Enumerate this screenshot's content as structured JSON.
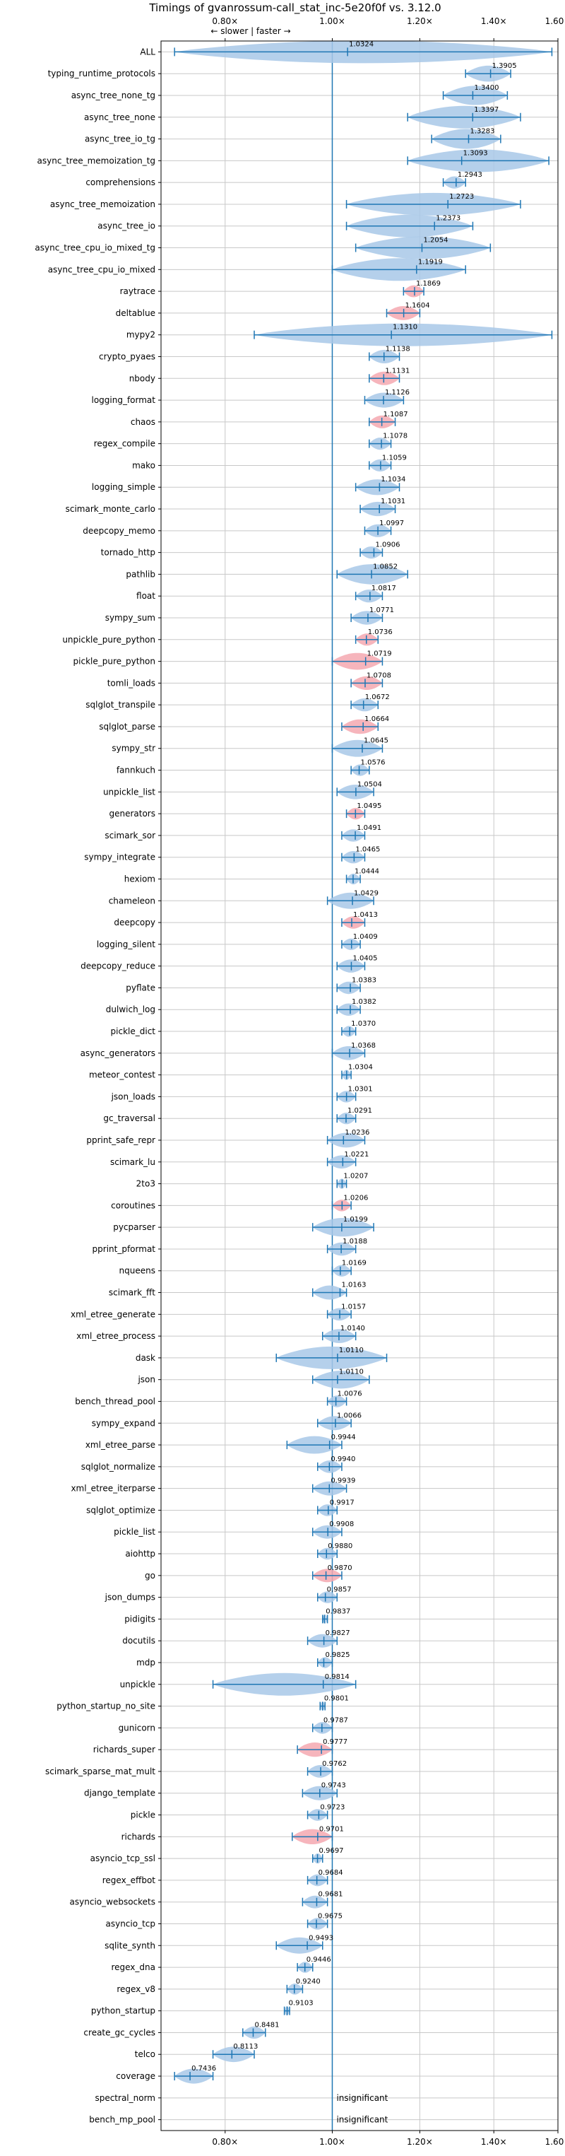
{
  "chart_data": {
    "type": "violin",
    "title": "Timings of gvanrossum-call_stat_inc-5e20f0f vs. 3.12.0",
    "direction_label": "← slower | faster →",
    "xlim": [
      0.7,
      1.6
    ],
    "xscale": "log",
    "xticks": [
      {
        "value": 0.8,
        "label": "0.80×"
      },
      {
        "value": 1.0,
        "label": "1.00×"
      },
      {
        "value": 1.2,
        "label": "1.20×"
      },
      {
        "value": 1.4,
        "label": "1.40×"
      },
      {
        "value": 1.6,
        "label": "1.60×"
      }
    ],
    "insignificant_label": "insignificant",
    "colors": {
      "normal": "#a8c8e8",
      "highlight": "#f4a8b0",
      "line": "#1f77b4",
      "grid": "#c8c8c8",
      "refline": "#1f77b4"
    },
    "benchmarks": [
      {
        "name": "ALL",
        "value": 1.0324,
        "label": "1.0324",
        "min": 0.72,
        "max": 1.58,
        "highlight": false
      },
      {
        "name": "typing_runtime_protocols",
        "value": 1.3905,
        "label": "1.3905",
        "min": 1.32,
        "max": 1.45,
        "highlight": false
      },
      {
        "name": "async_tree_none_tg",
        "value": 1.34,
        "label": "1.3400",
        "min": 1.26,
        "max": 1.44,
        "highlight": false
      },
      {
        "name": "async_tree_none",
        "value": 1.3397,
        "label": "1.3397",
        "min": 1.17,
        "max": 1.48,
        "highlight": false
      },
      {
        "name": "async_tree_io_tg",
        "value": 1.3283,
        "label": "1.3283",
        "min": 1.23,
        "max": 1.42,
        "highlight": false
      },
      {
        "name": "async_tree_memoization_tg",
        "value": 1.3093,
        "label": "1.3093",
        "min": 1.17,
        "max": 1.57,
        "highlight": false
      },
      {
        "name": "comprehensions",
        "value": 1.2943,
        "label": "1.2943",
        "min": 1.26,
        "max": 1.32,
        "highlight": false
      },
      {
        "name": "async_tree_memoization",
        "value": 1.2723,
        "label": "1.2723",
        "min": 1.03,
        "max": 1.48,
        "highlight": false
      },
      {
        "name": "async_tree_io",
        "value": 1.2373,
        "label": "1.2373",
        "min": 1.03,
        "max": 1.34,
        "highlight": false
      },
      {
        "name": "async_tree_cpu_io_mixed_tg",
        "value": 1.2054,
        "label": "1.2054",
        "min": 1.05,
        "max": 1.39,
        "highlight": false
      },
      {
        "name": "async_tree_cpu_io_mixed",
        "value": 1.1919,
        "label": "1.1919",
        "min": 1.0,
        "max": 1.32,
        "highlight": false
      },
      {
        "name": "raytrace",
        "value": 1.1869,
        "label": "1.1869",
        "min": 1.16,
        "max": 1.21,
        "highlight": true
      },
      {
        "name": "deltablue",
        "value": 1.1604,
        "label": "1.1604",
        "min": 1.12,
        "max": 1.2,
        "highlight": true
      },
      {
        "name": "mypy2",
        "value": 1.131,
        "label": "1.1310",
        "min": 0.85,
        "max": 1.58,
        "highlight": false
      },
      {
        "name": "crypto_pyaes",
        "value": 1.1138,
        "label": "1.1138",
        "min": 1.08,
        "max": 1.15,
        "highlight": false
      },
      {
        "name": "nbody",
        "value": 1.1131,
        "label": "1.1131",
        "min": 1.08,
        "max": 1.15,
        "highlight": true
      },
      {
        "name": "logging_format",
        "value": 1.1126,
        "label": "1.1126",
        "min": 1.07,
        "max": 1.16,
        "highlight": false
      },
      {
        "name": "chaos",
        "value": 1.1087,
        "label": "1.1087",
        "min": 1.08,
        "max": 1.14,
        "highlight": true
      },
      {
        "name": "regex_compile",
        "value": 1.1078,
        "label": "1.1078",
        "min": 1.08,
        "max": 1.13,
        "highlight": false
      },
      {
        "name": "mako",
        "value": 1.1059,
        "label": "1.1059",
        "min": 1.08,
        "max": 1.13,
        "highlight": false
      },
      {
        "name": "logging_simple",
        "value": 1.1034,
        "label": "1.1034",
        "min": 1.05,
        "max": 1.15,
        "highlight": false
      },
      {
        "name": "scimark_monte_carlo",
        "value": 1.1031,
        "label": "1.1031",
        "min": 1.06,
        "max": 1.14,
        "highlight": false
      },
      {
        "name": "deepcopy_memo",
        "value": 1.0997,
        "label": "1.0997",
        "min": 1.07,
        "max": 1.13,
        "highlight": false
      },
      {
        "name": "tornado_http",
        "value": 1.0906,
        "label": "1.0906",
        "min": 1.06,
        "max": 1.11,
        "highlight": false
      },
      {
        "name": "pathlib",
        "value": 1.0852,
        "label": "1.0852",
        "min": 1.01,
        "max": 1.17,
        "highlight": false
      },
      {
        "name": "float",
        "value": 1.0817,
        "label": "1.0817",
        "min": 1.05,
        "max": 1.11,
        "highlight": false
      },
      {
        "name": "sympy_sum",
        "value": 1.0771,
        "label": "1.0771",
        "min": 1.04,
        "max": 1.11,
        "highlight": false
      },
      {
        "name": "unpickle_pure_python",
        "value": 1.0736,
        "label": "1.0736",
        "min": 1.05,
        "max": 1.1,
        "highlight": true
      },
      {
        "name": "pickle_pure_python",
        "value": 1.0719,
        "label": "1.0719",
        "min": 1.0,
        "max": 1.11,
        "highlight": true
      },
      {
        "name": "tomli_loads",
        "value": 1.0708,
        "label": "1.0708",
        "min": 1.04,
        "max": 1.11,
        "highlight": true
      },
      {
        "name": "sqlglot_transpile",
        "value": 1.0672,
        "label": "1.0672",
        "min": 1.04,
        "max": 1.1,
        "highlight": false
      },
      {
        "name": "sqlglot_parse",
        "value": 1.0664,
        "label": "1.0664",
        "min": 1.02,
        "max": 1.1,
        "highlight": true
      },
      {
        "name": "sympy_str",
        "value": 1.0645,
        "label": "1.0645",
        "min": 1.0,
        "max": 1.11,
        "highlight": false
      },
      {
        "name": "fannkuch",
        "value": 1.0576,
        "label": "1.0576",
        "min": 1.04,
        "max": 1.08,
        "highlight": false
      },
      {
        "name": "unpickle_list",
        "value": 1.0504,
        "label": "1.0504",
        "min": 1.01,
        "max": 1.09,
        "highlight": false
      },
      {
        "name": "generators",
        "value": 1.0495,
        "label": "1.0495",
        "min": 1.03,
        "max": 1.07,
        "highlight": true
      },
      {
        "name": "scimark_sor",
        "value": 1.0491,
        "label": "1.0491",
        "min": 1.02,
        "max": 1.07,
        "highlight": false
      },
      {
        "name": "sympy_integrate",
        "value": 1.0465,
        "label": "1.0465",
        "min": 1.02,
        "max": 1.07,
        "highlight": false
      },
      {
        "name": "hexiom",
        "value": 1.0444,
        "label": "1.0444",
        "min": 1.03,
        "max": 1.06,
        "highlight": false
      },
      {
        "name": "chameleon",
        "value": 1.0429,
        "label": "1.0429",
        "min": 0.99,
        "max": 1.09,
        "highlight": false
      },
      {
        "name": "deepcopy",
        "value": 1.0413,
        "label": "1.0413",
        "min": 1.02,
        "max": 1.07,
        "highlight": true
      },
      {
        "name": "logging_silent",
        "value": 1.0409,
        "label": "1.0409",
        "min": 1.02,
        "max": 1.06,
        "highlight": false
      },
      {
        "name": "deepcopy_reduce",
        "value": 1.0405,
        "label": "1.0405",
        "min": 1.01,
        "max": 1.07,
        "highlight": false
      },
      {
        "name": "pyflate",
        "value": 1.0383,
        "label": "1.0383",
        "min": 1.01,
        "max": 1.06,
        "highlight": false
      },
      {
        "name": "dulwich_log",
        "value": 1.0382,
        "label": "1.0382",
        "min": 1.01,
        "max": 1.06,
        "highlight": false
      },
      {
        "name": "pickle_dict",
        "value": 1.037,
        "label": "1.0370",
        "min": 1.02,
        "max": 1.05,
        "highlight": false
      },
      {
        "name": "async_generators",
        "value": 1.0368,
        "label": "1.0368",
        "min": 1.0,
        "max": 1.07,
        "highlight": false
      },
      {
        "name": "meteor_contest",
        "value": 1.0304,
        "label": "1.0304",
        "min": 1.02,
        "max": 1.04,
        "highlight": false
      },
      {
        "name": "json_loads",
        "value": 1.0301,
        "label": "1.0301",
        "min": 1.01,
        "max": 1.05,
        "highlight": false
      },
      {
        "name": "gc_traversal",
        "value": 1.0291,
        "label": "1.0291",
        "min": 1.01,
        "max": 1.05,
        "highlight": false
      },
      {
        "name": "pprint_safe_repr",
        "value": 1.0236,
        "label": "1.0236",
        "min": 0.99,
        "max": 1.07,
        "highlight": false
      },
      {
        "name": "scimark_lu",
        "value": 1.0221,
        "label": "1.0221",
        "min": 0.99,
        "max": 1.05,
        "highlight": false
      },
      {
        "name": "2to3",
        "value": 1.0207,
        "label": "1.0207",
        "min": 1.01,
        "max": 1.03,
        "highlight": false
      },
      {
        "name": "coroutines",
        "value": 1.0206,
        "label": "1.0206",
        "min": 1.0,
        "max": 1.04,
        "highlight": true
      },
      {
        "name": "pycparser",
        "value": 1.0199,
        "label": "1.0199",
        "min": 0.96,
        "max": 1.09,
        "highlight": false
      },
      {
        "name": "pprint_pformat",
        "value": 1.0188,
        "label": "1.0188",
        "min": 0.99,
        "max": 1.05,
        "highlight": false
      },
      {
        "name": "nqueens",
        "value": 1.0169,
        "label": "1.0169",
        "min": 1.0,
        "max": 1.04,
        "highlight": false
      },
      {
        "name": "scimark_fft",
        "value": 1.0163,
        "label": "1.0163",
        "min": 0.96,
        "max": 1.03,
        "highlight": false
      },
      {
        "name": "xml_etree_generate",
        "value": 1.0157,
        "label": "1.0157",
        "min": 0.99,
        "max": 1.04,
        "highlight": false
      },
      {
        "name": "xml_etree_process",
        "value": 1.014,
        "label": "1.0140",
        "min": 0.98,
        "max": 1.05,
        "highlight": false
      },
      {
        "name": "dask",
        "value": 1.011,
        "label": "1.0110",
        "min": 0.89,
        "max": 1.12,
        "highlight": false
      },
      {
        "name": "json",
        "value": 1.011,
        "label": "1.0110",
        "min": 0.96,
        "max": 1.08,
        "highlight": false
      },
      {
        "name": "bench_thread_pool",
        "value": 1.0076,
        "label": "1.0076",
        "min": 0.99,
        "max": 1.03,
        "highlight": false
      },
      {
        "name": "sympy_expand",
        "value": 1.0066,
        "label": "1.0066",
        "min": 0.97,
        "max": 1.04,
        "highlight": false
      },
      {
        "name": "xml_etree_parse",
        "value": 0.9944,
        "label": "0.9944",
        "min": 0.91,
        "max": 1.02,
        "highlight": false
      },
      {
        "name": "sqlglot_normalize",
        "value": 0.994,
        "label": "0.9940",
        "min": 0.97,
        "max": 1.02,
        "highlight": false
      },
      {
        "name": "xml_etree_iterparse",
        "value": 0.9939,
        "label": "0.9939",
        "min": 0.96,
        "max": 1.03,
        "highlight": false
      },
      {
        "name": "sqlglot_optimize",
        "value": 0.9917,
        "label": "0.9917",
        "min": 0.97,
        "max": 1.01,
        "highlight": false
      },
      {
        "name": "pickle_list",
        "value": 0.9908,
        "label": "0.9908",
        "min": 0.96,
        "max": 1.02,
        "highlight": false
      },
      {
        "name": "aiohttp",
        "value": 0.988,
        "label": "0.9880",
        "min": 0.97,
        "max": 1.01,
        "highlight": false
      },
      {
        "name": "go",
        "value": 0.987,
        "label": "0.9870",
        "min": 0.96,
        "max": 1.02,
        "highlight": true
      },
      {
        "name": "json_dumps",
        "value": 0.9857,
        "label": "0.9857",
        "min": 0.97,
        "max": 1.01,
        "highlight": false
      },
      {
        "name": "pidigits",
        "value": 0.9837,
        "label": "0.9837",
        "min": 0.98,
        "max": 0.99,
        "highlight": false
      },
      {
        "name": "docutils",
        "value": 0.9827,
        "label": "0.9827",
        "min": 0.95,
        "max": 1.01,
        "highlight": false
      },
      {
        "name": "mdp",
        "value": 0.9825,
        "label": "0.9825",
        "min": 0.97,
        "max": 1.0,
        "highlight": false
      },
      {
        "name": "unpickle",
        "value": 0.9814,
        "label": "0.9814",
        "min": 0.78,
        "max": 1.05,
        "highlight": false
      },
      {
        "name": "python_startup_no_site",
        "value": 0.9801,
        "label": "0.9801",
        "min": 0.975,
        "max": 0.985,
        "highlight": false
      },
      {
        "name": "gunicorn",
        "value": 0.9787,
        "label": "0.9787",
        "min": 0.96,
        "max": 1.0,
        "highlight": false
      },
      {
        "name": "richards_super",
        "value": 0.9777,
        "label": "0.9777",
        "min": 0.93,
        "max": 1.0,
        "highlight": true
      },
      {
        "name": "scimark_sparse_mat_mult",
        "value": 0.9762,
        "label": "0.9762",
        "min": 0.95,
        "max": 1.0,
        "highlight": false
      },
      {
        "name": "django_template",
        "value": 0.9743,
        "label": "0.9743",
        "min": 0.94,
        "max": 1.01,
        "highlight": false
      },
      {
        "name": "pickle",
        "value": 0.9723,
        "label": "0.9723",
        "min": 0.95,
        "max": 0.99,
        "highlight": false
      },
      {
        "name": "richards",
        "value": 0.9701,
        "label": "0.9701",
        "min": 0.92,
        "max": 1.0,
        "highlight": true
      },
      {
        "name": "asyncio_tcp_ssl",
        "value": 0.9697,
        "label": "0.9697",
        "min": 0.96,
        "max": 0.98,
        "highlight": false
      },
      {
        "name": "regex_effbot",
        "value": 0.9684,
        "label": "0.9684",
        "min": 0.95,
        "max": 0.99,
        "highlight": false
      },
      {
        "name": "asyncio_websockets",
        "value": 0.9681,
        "label": "0.9681",
        "min": 0.94,
        "max": 0.99,
        "highlight": false
      },
      {
        "name": "asyncio_tcp",
        "value": 0.9675,
        "label": "0.9675",
        "min": 0.95,
        "max": 0.99,
        "highlight": false
      },
      {
        "name": "sqlite_synth",
        "value": 0.9493,
        "label": "0.9493",
        "min": 0.89,
        "max": 0.98,
        "highlight": false
      },
      {
        "name": "regex_dna",
        "value": 0.9446,
        "label": "0.9446",
        "min": 0.93,
        "max": 0.96,
        "highlight": false
      },
      {
        "name": "regex_v8",
        "value": 0.924,
        "label": "0.9240",
        "min": 0.91,
        "max": 0.94,
        "highlight": false
      },
      {
        "name": "python_startup",
        "value": 0.9103,
        "label": "0.9103",
        "min": 0.905,
        "max": 0.915,
        "highlight": false
      },
      {
        "name": "create_gc_cycles",
        "value": 0.8481,
        "label": "0.8481",
        "min": 0.83,
        "max": 0.87,
        "highlight": false
      },
      {
        "name": "telco",
        "value": 0.8113,
        "label": "0.8113",
        "min": 0.78,
        "max": 0.85,
        "highlight": false
      },
      {
        "name": "coverage",
        "value": 0.7436,
        "label": "0.7436",
        "min": 0.72,
        "max": 0.78,
        "highlight": false
      },
      {
        "name": "spectral_norm",
        "value": null,
        "label": "insignificant",
        "insignificant": true
      },
      {
        "name": "bench_mp_pool",
        "value": null,
        "label": "insignificant",
        "insignificant": true
      }
    ]
  }
}
